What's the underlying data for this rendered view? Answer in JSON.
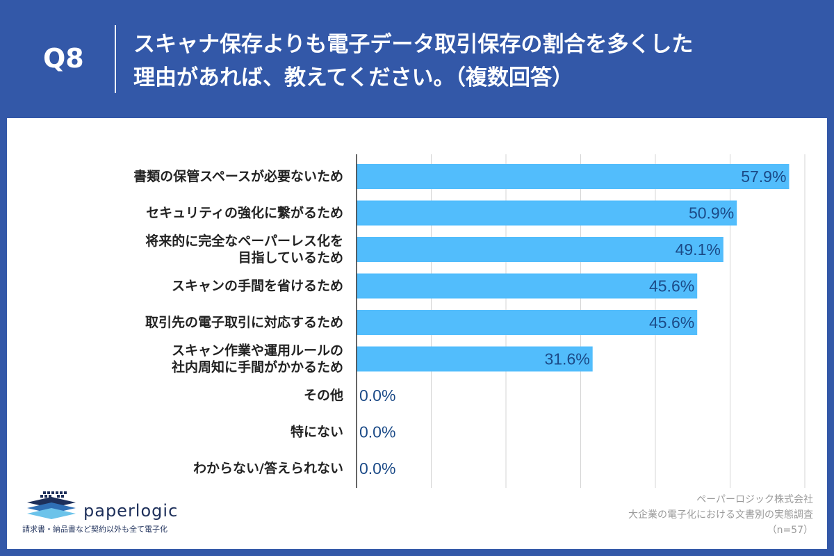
{
  "header": {
    "question_label": "Q8",
    "title_line1": "スキャナ保存よりも電子データ取引保存の割合を多くした",
    "title_line2": "理由があれば、教えてください。（複数回答）"
  },
  "chart_data": {
    "type": "bar",
    "orientation": "horizontal",
    "categories": [
      [
        "書類の保管スペースが必要ないため"
      ],
      [
        "セキュリティの強化に繋がるため"
      ],
      [
        "将来的に完全なペーパーレス化を",
        "目指しているため"
      ],
      [
        "スキャンの手間を省けるため"
      ],
      [
        "取引先の電子取引に対応するため"
      ],
      [
        "スキャン作業や運用ルールの",
        "社内周知に手間がかかるため"
      ],
      [
        "その他"
      ],
      [
        "特にない"
      ],
      [
        "わからない/答えられない"
      ]
    ],
    "values": [
      57.9,
      50.9,
      49.1,
      45.6,
      45.6,
      31.6,
      0.0,
      0.0,
      0.0
    ],
    "value_labels": [
      "57.9%",
      "50.9%",
      "49.1%",
      "45.6%",
      "45.6%",
      "31.6%",
      "0.0%",
      "0.0%",
      "0.0%"
    ],
    "xlim": [
      0,
      60
    ],
    "grid": true,
    "bar_color": "#52bdfc",
    "label_color": "#1b4a87"
  },
  "footer": {
    "brand": "paperlogic",
    "tagline": "請求書・納品書など契約以外も全て電子化",
    "company": "ペーパーロジック株式会社",
    "survey": "大企業の電子化における文書別の実態調査",
    "sample": "（n=57）"
  },
  "colors": {
    "background": "#3358a8",
    "panel": "#ffffff",
    "bar": "#52bdfc",
    "value_text": "#1b4a87"
  }
}
